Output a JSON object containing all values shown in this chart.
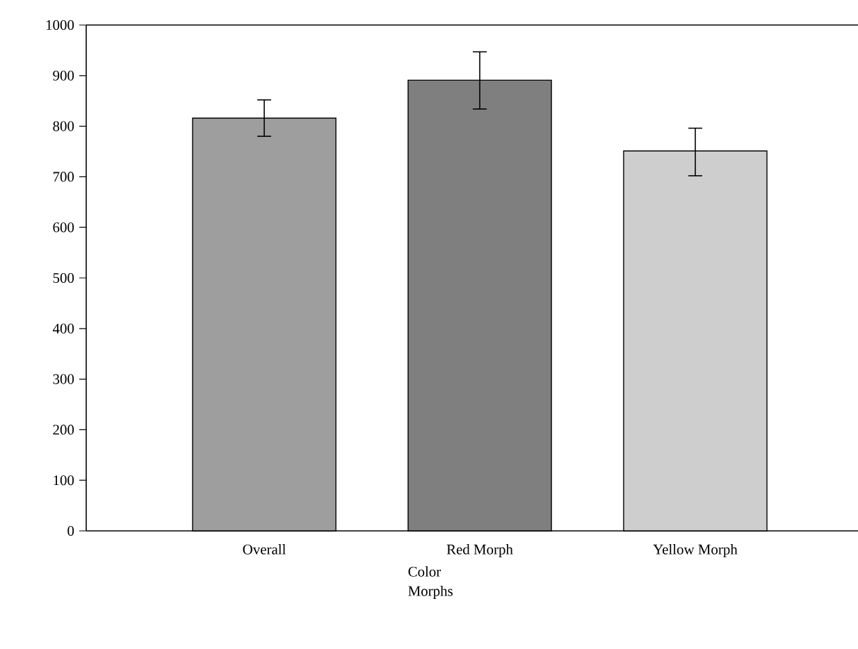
{
  "chart_data": {
    "type": "bar",
    "xlabel": "Color Morphs",
    "categories": [
      "Overall",
      "Red Morph",
      "Yellow Morph"
    ],
    "values": [
      816,
      891,
      751
    ],
    "colors": [
      "#9d9e9d",
      "#7f7f7f",
      "#cdcecd"
    ],
    "errors": [
      [
        780,
        852
      ],
      [
        834,
        947
      ],
      [
        702,
        796
      ]
    ],
    "ylim": [
      0,
      1000
    ],
    "yticks": [
      0,
      100,
      200,
      300,
      400,
      500,
      600,
      700,
      800,
      900,
      1000
    ],
    "grid": false
  }
}
